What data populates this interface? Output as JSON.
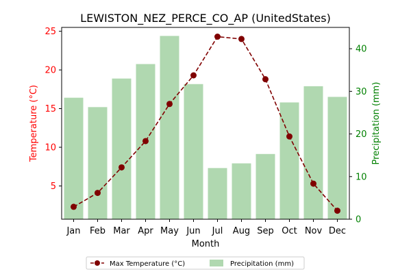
{
  "chart_data": {
    "type": "bar+line",
    "title": "LEWISTON_NEZ_PERCE_CO_AP (UnitedStates)",
    "xlabel": "Month",
    "categories": [
      "Jan",
      "Feb",
      "Mar",
      "Apr",
      "May",
      "Jun",
      "Jul",
      "Aug",
      "Sep",
      "Oct",
      "Nov",
      "Dec"
    ],
    "left_axis": {
      "label": "Temperature (°C)",
      "color": "#ff0000",
      "ticks": [
        5,
        10,
        15,
        20,
        25
      ],
      "ylim": [
        0.7,
        25.5
      ]
    },
    "right_axis": {
      "label": "Precipitation (mm)",
      "color": "#008000",
      "ticks": [
        0,
        10,
        20,
        30,
        40
      ],
      "ylim": [
        0,
        45
      ]
    },
    "series": [
      {
        "name": "Max Temperature (°C)",
        "kind": "line",
        "axis": "left",
        "color": "#800000",
        "values": [
          2.3,
          4.1,
          7.4,
          10.8,
          15.6,
          19.3,
          24.3,
          24.0,
          18.8,
          11.4,
          5.3,
          1.8
        ]
      },
      {
        "name": "Precipitation (mm)",
        "kind": "bar",
        "axis": "right",
        "color": "#b0d8b0",
        "values": [
          28.5,
          26.3,
          33.0,
          36.4,
          43.0,
          31.7,
          12.0,
          13.1,
          15.3,
          27.4,
          31.2,
          28.7
        ]
      }
    ],
    "legend": {
      "placement": "bottom-center",
      "entries": [
        "Max Temperature (°C)",
        "Precipitation (mm)"
      ]
    },
    "grid": false
  }
}
